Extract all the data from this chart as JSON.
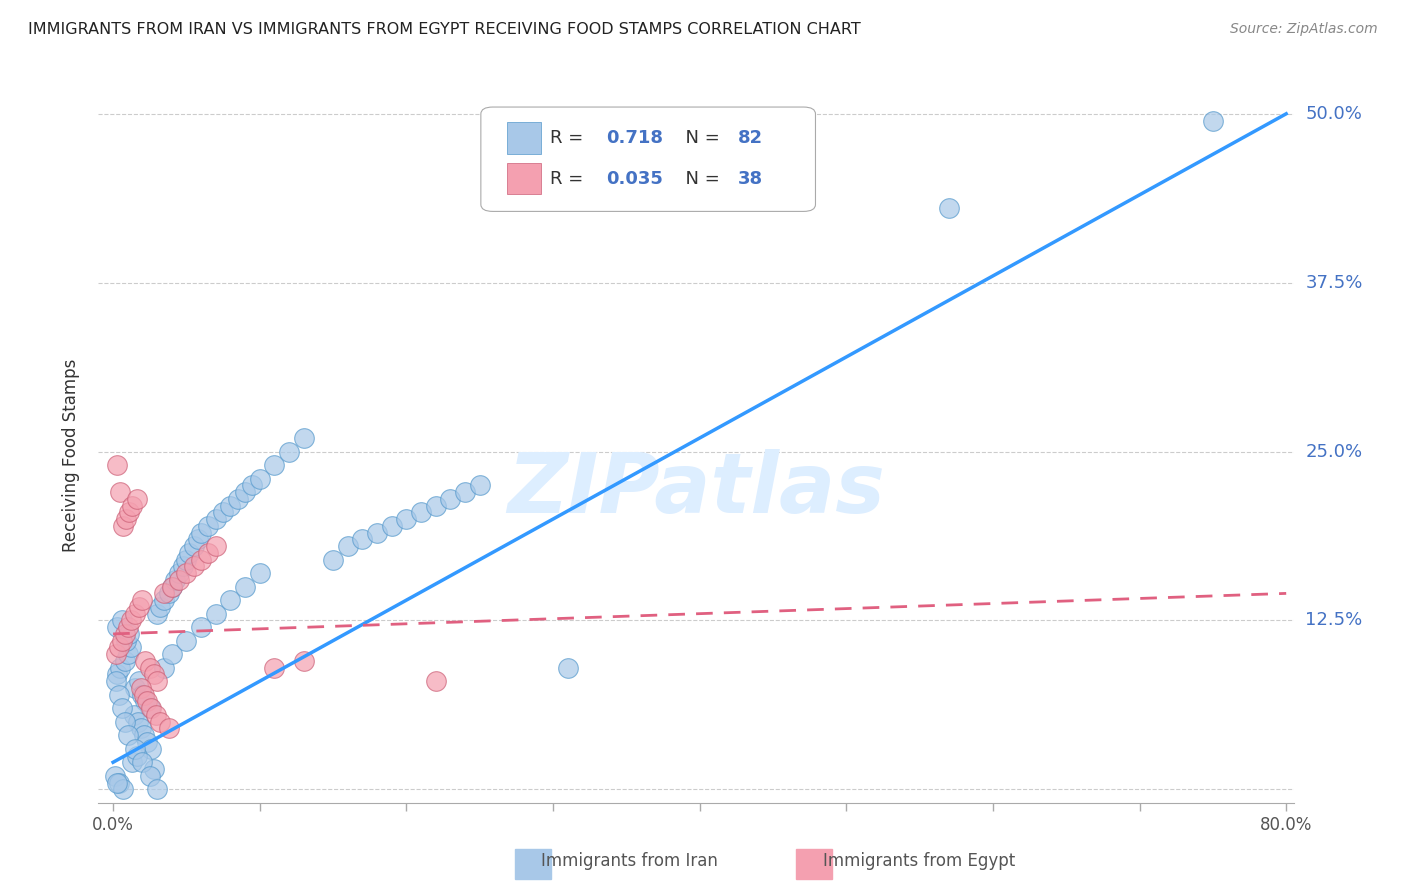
{
  "title": "IMMIGRANTS FROM IRAN VS IMMIGRANTS FROM EGYPT RECEIVING FOOD STAMPS CORRELATION CHART",
  "source": "Source: ZipAtlas.com",
  "ylabel": "Receiving Food Stamps",
  "legend_iran": "Immigrants from Iran",
  "legend_egypt": "Immigrants from Egypt",
  "iran_R": "0.718",
  "iran_N": "82",
  "egypt_R": "0.035",
  "egypt_N": "38",
  "xlim": [
    0.0,
    0.8
  ],
  "ylim": [
    0.0,
    0.5
  ],
  "iran_color": "#a8c8e8",
  "egypt_color": "#f4a0b0",
  "iran_line_color": "#3399ff",
  "egypt_line_color": "#e06080",
  "iran_edgecolor": "#5599cc",
  "egypt_edgecolor": "#cc6077",
  "watermark_color": "#ddeeff",
  "grid_color": "#cccccc",
  "right_tick_color": "#4472C4",
  "iran_scatter_x": [
    0.003,
    0.005,
    0.008,
    0.01,
    0.012,
    0.015,
    0.018,
    0.02,
    0.022,
    0.025,
    0.003,
    0.006,
    0.009,
    0.011,
    0.014,
    0.017,
    0.019,
    0.021,
    0.023,
    0.026,
    0.001,
    0.004,
    0.007,
    0.013,
    0.016,
    0.028,
    0.03,
    0.032,
    0.035,
    0.038,
    0.04,
    0.042,
    0.045,
    0.048,
    0.05,
    0.052,
    0.055,
    0.058,
    0.06,
    0.065,
    0.07,
    0.075,
    0.08,
    0.085,
    0.09,
    0.095,
    0.1,
    0.11,
    0.12,
    0.13,
    0.002,
    0.004,
    0.006,
    0.008,
    0.01,
    0.015,
    0.02,
    0.025,
    0.03,
    0.035,
    0.04,
    0.05,
    0.06,
    0.07,
    0.08,
    0.09,
    0.1,
    0.15,
    0.16,
    0.17,
    0.18,
    0.19,
    0.2,
    0.21,
    0.22,
    0.23,
    0.24,
    0.25,
    0.57,
    0.75,
    0.003,
    0.31
  ],
  "iran_scatter_y": [
    0.085,
    0.09,
    0.095,
    0.1,
    0.105,
    0.075,
    0.08,
    0.07,
    0.065,
    0.06,
    0.12,
    0.125,
    0.11,
    0.115,
    0.055,
    0.05,
    0.045,
    0.04,
    0.035,
    0.03,
    0.01,
    0.005,
    0.0,
    0.02,
    0.025,
    0.015,
    0.13,
    0.135,
    0.14,
    0.145,
    0.15,
    0.155,
    0.16,
    0.165,
    0.17,
    0.175,
    0.18,
    0.185,
    0.19,
    0.195,
    0.2,
    0.205,
    0.21,
    0.215,
    0.22,
    0.225,
    0.23,
    0.24,
    0.25,
    0.26,
    0.08,
    0.07,
    0.06,
    0.05,
    0.04,
    0.03,
    0.02,
    0.01,
    0.0,
    0.09,
    0.1,
    0.11,
    0.12,
    0.13,
    0.14,
    0.15,
    0.16,
    0.17,
    0.18,
    0.185,
    0.19,
    0.195,
    0.2,
    0.205,
    0.21,
    0.215,
    0.22,
    0.225,
    0.43,
    0.495,
    0.005,
    0.09
  ],
  "egypt_scatter_x": [
    0.002,
    0.004,
    0.006,
    0.008,
    0.01,
    0.012,
    0.015,
    0.018,
    0.02,
    0.022,
    0.025,
    0.028,
    0.03,
    0.035,
    0.04,
    0.045,
    0.05,
    0.055,
    0.06,
    0.065,
    0.07,
    0.003,
    0.005,
    0.007,
    0.009,
    0.011,
    0.013,
    0.016,
    0.019,
    0.021,
    0.023,
    0.026,
    0.029,
    0.032,
    0.038,
    0.11,
    0.13,
    0.22
  ],
  "egypt_scatter_y": [
    0.1,
    0.105,
    0.11,
    0.115,
    0.12,
    0.125,
    0.13,
    0.135,
    0.14,
    0.095,
    0.09,
    0.085,
    0.08,
    0.145,
    0.15,
    0.155,
    0.16,
    0.165,
    0.17,
    0.175,
    0.18,
    0.24,
    0.22,
    0.195,
    0.2,
    0.205,
    0.21,
    0.215,
    0.075,
    0.07,
    0.065,
    0.06,
    0.055,
    0.05,
    0.045,
    0.09,
    0.095,
    0.08
  ]
}
